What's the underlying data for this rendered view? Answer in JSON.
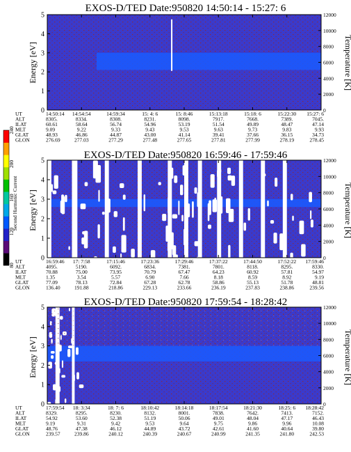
{
  "chart_data": [
    {
      "type": "heatmap",
      "title": "EXOS-D/TED   Date:950820  14:50:14 - 15:27: 6",
      "ylabel": "Energy [eV]",
      "ylabel_right": "Temperature [K]",
      "ylim": [
        0,
        5
      ],
      "yticks": [
        "0",
        "1",
        "2",
        "3",
        "4",
        "5"
      ],
      "ylim_right": [
        0,
        12000
      ],
      "yticks_right": [
        "0",
        "2000",
        "4000",
        "6000",
        "8000",
        "10000",
        "12000"
      ],
      "band_energy_ev": [
        2.1,
        3.0
      ],
      "data_gaps": [],
      "vertical_marker": {
        "x_fraction": 0.452
      },
      "orbit_table": {
        "rows": [
          {
            "label": "UT",
            "values": [
              "14:50:14",
              "14:54:54",
              "14:59:34",
              "15: 4: 6",
              "15: 8:46",
              "15:13:18",
              "15:18: 6",
              "15:22:30",
              "15:27: 6"
            ]
          },
          {
            "label": "ALT",
            "values": [
              "8305.",
              "8334.",
              "8308.",
              "8231.",
              "8098.",
              "7917.",
              "7668.",
              "7389.",
              "7045."
            ]
          },
          {
            "label": "ILAT",
            "values": [
              "60.61",
              "58.64",
              "56.74",
              "54.96",
              "53.19",
              "51.54",
              "49.89",
              "48.47",
              "47.14"
            ]
          },
          {
            "label": "MLT",
            "values": [
              "9.09",
              "9.22",
              "9.33",
              "9.43",
              "9.53",
              "9.63",
              "9.73",
              "9.83",
              "9.93"
            ]
          },
          {
            "label": "GLAT",
            "values": [
              "48.93",
              "46.86",
              "44.87",
              "43.00",
              "41.14",
              "39.41",
              "37.66",
              "36.15",
              "34.73"
            ]
          },
          {
            "label": "GLON",
            "values": [
              "276.69",
              "277.03",
              "277.29",
              "277.48",
              "277.65",
              "277.81",
              "277.99",
              "278.19",
              "278.45"
            ]
          }
        ]
      }
    },
    {
      "type": "heatmap",
      "title": "EXOS-D/TED   Date:950820  16:59:46 - 17:59:46",
      "ylabel": "Energy [eV]",
      "ylabel_right": "Temperature [K]",
      "ylim": [
        0,
        5
      ],
      "yticks": [
        "0",
        "1",
        "2",
        "3",
        "4",
        "5"
      ],
      "ylim_right": [
        0,
        12000
      ],
      "yticks_right": [
        "0",
        "2000",
        "4000",
        "6000",
        "8000",
        "10000",
        "12000"
      ],
      "band_energy_ev": [
        2.6,
        3.0
      ],
      "data_gaps": [
        [
          0.0,
          0.015
        ],
        [
          0.09,
          0.11
        ],
        [
          0.21,
          0.225
        ],
        [
          0.33,
          0.345
        ],
        [
          0.44,
          0.455
        ],
        [
          0.5,
          0.515
        ],
        [
          0.55,
          0.565
        ],
        [
          0.62,
          0.635
        ],
        [
          0.7,
          0.715
        ],
        [
          0.78,
          0.795
        ],
        [
          0.86,
          0.875
        ]
      ],
      "orbit_table": {
        "rows": [
          {
            "label": "UT",
            "values": [
              "16:59:46",
              "17: 7:58",
              "17:15:46",
              "17:23:36",
              "17:29:46",
              "17:37:22",
              "17:44:50",
              "17:52:22",
              "17:59:46"
            ]
          },
          {
            "label": "ALT",
            "values": [
              "4095.",
              "5190.",
              "6092.",
              "6834.",
              "7381.",
              "7801.",
              "8118.",
              "8295.",
              "8330."
            ]
          },
          {
            "label": "ILAT",
            "values": [
              "70.88",
              "75.00",
              "73.95",
              "70.79",
              "67.47",
              "64.23",
              "60.92",
              "57.81",
              "54.97"
            ]
          },
          {
            "label": "MLT",
            "values": [
              "1.35",
              "3.54",
              "5.57",
              "6.90",
              "7.66",
              "8.18",
              "8.59",
              "8.92",
              "9.19"
            ]
          },
          {
            "label": "GLAT",
            "values": [
              "77.09",
              "78.13",
              "72.84",
              "67.28",
              "62.78",
              "58.86",
              "55.13",
              "51.78",
              "48.81"
            ]
          },
          {
            "label": "GLON",
            "values": [
              "136.40",
              "191.88",
              "218.86",
              "229.13",
              "233.66",
              "236.19",
              "237.83",
              "238.86",
              "239.56"
            ]
          }
        ]
      }
    },
    {
      "type": "heatmap",
      "title": "EXOS-D/TED   Date:950820  17:59:54 - 18:28:42",
      "ylabel": "Energy [eV]",
      "ylabel_right": "Temperature [K]",
      "ylim": [
        0,
        5
      ],
      "yticks": [
        "0",
        "1",
        "2",
        "3",
        "4",
        "5"
      ],
      "ylim_right": [
        0,
        12000
      ],
      "yticks_right": [
        "0",
        "2000",
        "4000",
        "6000",
        "8000",
        "10000",
        "12000"
      ],
      "band_energy_ev": [
        2.2,
        3.0
      ],
      "data_gaps": [
        [
          0.03,
          0.045
        ],
        [
          0.09,
          0.1
        ]
      ],
      "orbit_table": {
        "rows": [
          {
            "label": "UT",
            "values": [
              "17:59:54",
              "18: 3:34",
              "18: 7: 6",
              "18:10:42",
              "18:14:18",
              "18:17:54",
              "18:21:30",
              "18:25: 6",
              "18:28:42"
            ]
          },
          {
            "label": "ALT",
            "values": [
              "8329.",
              "8295.",
              "8230.",
              "8132.",
              "8001.",
              "7838.",
              "7642.",
              "7413.",
              "7152."
            ]
          },
          {
            "label": "ILAT",
            "values": [
              "54.92",
              "53.60",
              "52.38",
              "51.19",
              "50.06",
              "49.01",
              "48.04",
              "47.17",
              "46.43"
            ]
          },
          {
            "label": "MLT",
            "values": [
              "9.19",
              "9.31",
              "9.42",
              "9.53",
              "9.64",
              "9.75",
              "9.86",
              "9.96",
              "10.08"
            ]
          },
          {
            "label": "GLAT",
            "values": [
              "48.76",
              "47.38",
              "46.12",
              "44.89",
              "43.72",
              "42.61",
              "41.60",
              "40.64",
              "39.80"
            ]
          },
          {
            "label": "GLON",
            "values": [
              "239.57",
              "239.86",
              "240.12",
              "240.39",
              "240.67",
              "240.99",
              "241.35",
              "241.80",
              "242.53"
            ]
          }
        ]
      }
    }
  ],
  "colorbar": {
    "label": "Second Harmonic Current",
    "ticks": [
      "80",
      "120",
      "160",
      "200",
      "240"
    ],
    "colors": [
      "#000000",
      "#5a0a78",
      "#2020c8",
      "#0058ff",
      "#00a8e8",
      "#00c8a0",
      "#00c000",
      "#a0e000",
      "#ffff00",
      "#ffa000",
      "#ff0000"
    ]
  },
  "colors": {
    "background": "#3a3acc",
    "band": "#1a5cff",
    "dots": "#8a2a40",
    "gap": "#ffffff"
  }
}
